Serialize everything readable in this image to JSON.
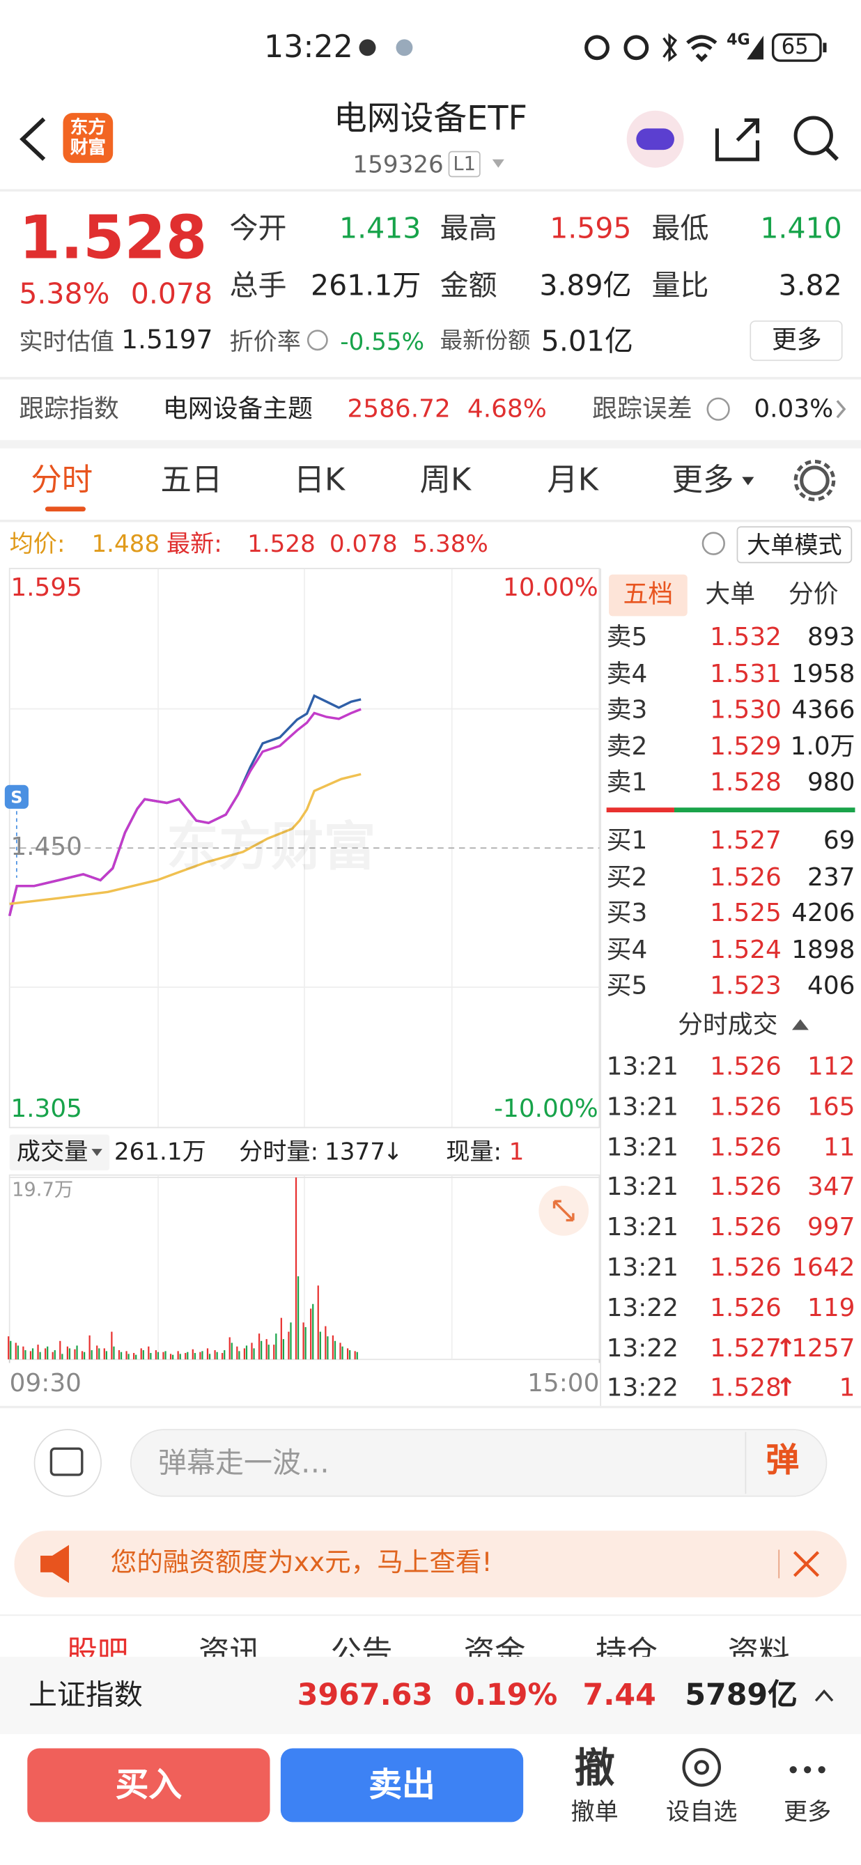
{
  "status_bar": {
    "time": "13:22",
    "network": "4G",
    "battery": "65"
  },
  "header": {
    "logo": "东方财富",
    "title": "电网设备ETF",
    "code": "159326",
    "level": "L1"
  },
  "quote": {
    "price": "1.528",
    "change_pct": "5.38%",
    "change": "0.078",
    "fields": [
      {
        "label": "今开",
        "value": "1.413"
      },
      {
        "label": "最高",
        "value": "1.595"
      },
      {
        "label": "最低",
        "value": "1.410"
      },
      {
        "label": "总手",
        "value": "261.1万"
      },
      {
        "label": "金额",
        "value": "3.89亿"
      },
      {
        "label": "量比",
        "value": "3.82"
      }
    ],
    "estimate_label": "实时估值",
    "estimate": "1.5197",
    "discount_label": "折价率",
    "discount": "-0.55%",
    "shares_label": "最新份额",
    "shares": "5.01亿",
    "more": "更多"
  },
  "tracking": {
    "label": "跟踪指数",
    "index": "电网设备主题",
    "value": "2586.72",
    "pct": "4.68%",
    "error_label": "跟踪误差",
    "error": "0.03%"
  },
  "tabs": [
    "分时",
    "五日",
    "日K",
    "周K",
    "月K",
    "更多"
  ],
  "info_line": {
    "avg_label": "均价:",
    "avg": "1.488",
    "latest_label": "最新:",
    "latest": "1.528",
    "change": "0.078",
    "pct": "5.38%",
    "mode": "大单模式"
  },
  "watermark": "东方财富",
  "intraday_chart": {
    "type": "line",
    "xlim": [
      0,
      240
    ],
    "ylim": [
      1.305,
      1.595
    ],
    "y2lim": [
      -10,
      10
    ],
    "yticks": [
      1.595,
      {
        "value": 1.45,
        "label": "1.450"
      },
      1.305
    ],
    "y2ticks": [
      {
        "value": 10,
        "label": "10.00%"
      },
      {
        "value": -10,
        "label": "-10.00%"
      }
    ],
    "series": [
      {
        "color": "#2f5fa7",
        "x": [
          0,
          3,
          10,
          20,
          30,
          37,
          42,
          47,
          52,
          55,
          64,
          69,
          76,
          81,
          88,
          93,
          98,
          103,
          110,
          117,
          121,
          124,
          129,
          134,
          139,
          143
        ],
        "values": [
          1.4148,
          1.4303,
          1.4303,
          1.4333,
          1.4364,
          1.4333,
          1.4395,
          1.458,
          1.4704,
          1.4753,
          1.4734,
          1.4753,
          1.4642,
          1.463,
          1.4673,
          1.4778,
          1.492,
          1.5043,
          1.5074,
          1.5166,
          1.5197,
          1.529,
          1.5259,
          1.5228,
          1.5259,
          1.5271
        ]
      },
      {
        "color": "#c23cc9",
        "x": [
          0,
          3,
          10,
          20,
          30,
          37,
          42,
          47,
          52,
          55,
          64,
          69,
          76,
          81,
          88,
          93,
          98,
          103,
          110,
          117,
          121,
          124,
          129,
          134,
          139,
          143
        ],
        "values": [
          1.4148,
          1.4303,
          1.4303,
          1.4333,
          1.4364,
          1.4333,
          1.4395,
          1.458,
          1.4704,
          1.4753,
          1.4734,
          1.4753,
          1.4642,
          1.463,
          1.4673,
          1.4778,
          1.49,
          1.5,
          1.503,
          1.511,
          1.515,
          1.52,
          1.518,
          1.517,
          1.52,
          1.522
        ]
      },
      {
        "color": "#f0c050",
        "x": [
          0,
          20,
          40,
          60,
          80,
          95,
          105,
          115,
          118,
          121,
          124,
          130,
          135,
          143
        ],
        "values": [
          1.421,
          1.424,
          1.4272,
          1.4333,
          1.4426,
          1.448,
          1.4549,
          1.46,
          1.4642,
          1.47,
          1.4796,
          1.483,
          1.4858,
          1.4883
        ]
      }
    ]
  },
  "volume_bar": {
    "label": "成交量",
    "total": "261.1万",
    "minute_label": "分时量:",
    "minute": "1377",
    "minute_arrow": "↓",
    "now_label": "现量:",
    "now": "1"
  },
  "volume_chart": {
    "type": "bar",
    "xlim": [
      0,
      240
    ],
    "ylim": [
      0,
      197000
    ],
    "yticks": [
      {
        "value": 197000,
        "label": "19.7万"
      }
    ],
    "xticks": [
      {
        "value": 0,
        "label": "09:30"
      },
      {
        "value": 240,
        "label": "15:00"
      }
    ],
    "x": [
      0,
      3,
      6,
      9,
      12,
      15,
      18,
      21,
      24,
      27,
      30,
      33,
      36,
      39,
      42,
      45,
      48,
      51,
      54,
      57,
      60,
      63,
      66,
      69,
      72,
      75,
      78,
      81,
      84,
      87,
      90,
      93,
      96,
      99,
      102,
      105,
      108,
      111,
      114,
      117,
      120,
      123,
      126,
      129,
      132,
      135,
      138,
      141
    ],
    "series": [
      {
        "color": "#e8312f",
        "values": [
          25000,
          18000,
          14000,
          9000,
          16000,
          12000,
          8000,
          20000,
          14000,
          11000,
          9000,
          26000,
          15000,
          12000,
          30000,
          10000,
          9000,
          7000,
          12000,
          14000,
          10000,
          8000,
          6000,
          9000,
          7000,
          11000,
          8000,
          12000,
          10000,
          7000,
          24000,
          14000,
          12000,
          18000,
          28000,
          22000,
          16000,
          45000,
          30000,
          197000,
          40000,
          55000,
          80000,
          36000,
          26000,
          18000,
          12000,
          9000
        ]
      },
      {
        "color": "#1aa34a",
        "values": [
          20000,
          15000,
          10000,
          12000,
          8000,
          14000,
          10000,
          6000,
          12000,
          15000,
          8000,
          10000,
          12000,
          9000,
          14000,
          8000,
          6000,
          5000,
          10000,
          7000,
          8000,
          9000,
          5000,
          6000,
          8000,
          7000,
          9000,
          6000,
          8000,
          10000,
          18000,
          9000,
          15000,
          12000,
          20000,
          16000,
          28000,
          22000,
          40000,
          90000,
          35000,
          60000,
          30000,
          25000,
          20000,
          14000,
          10000,
          8000
        ]
      }
    ]
  },
  "order_book": {
    "tabs": [
      "五档",
      "大单",
      "分价"
    ],
    "asks": [
      {
        "label": "卖5",
        "price": "1.532",
        "volume": "893"
      },
      {
        "label": "卖4",
        "price": "1.531",
        "volume": "1958"
      },
      {
        "label": "卖3",
        "price": "1.530",
        "volume": "4366"
      },
      {
        "label": "卖2",
        "price": "1.529",
        "volume": "1.0万"
      },
      {
        "label": "卖1",
        "price": "1.528",
        "volume": "980"
      }
    ],
    "bids": [
      {
        "label": "买1",
        "price": "1.527",
        "volume": "69"
      },
      {
        "label": "买2",
        "price": "1.526",
        "volume": "237"
      },
      {
        "label": "买3",
        "price": "1.525",
        "volume": "4206"
      },
      {
        "label": "买4",
        "price": "1.524",
        "volume": "1898"
      },
      {
        "label": "买5",
        "price": "1.523",
        "volume": "406"
      }
    ],
    "trades_title": "分时成交",
    "trades": [
      {
        "time": "13:21",
        "price": "1.526",
        "volume": "112"
      },
      {
        "time": "13:21",
        "price": "1.526",
        "volume": "165"
      },
      {
        "time": "13:21",
        "price": "1.526",
        "volume": "11"
      },
      {
        "time": "13:21",
        "price": "1.526",
        "volume": "347"
      },
      {
        "time": "13:21",
        "price": "1.526",
        "volume": "997"
      },
      {
        "time": "13:21",
        "price": "1.526",
        "volume": "1642"
      },
      {
        "time": "13:22",
        "price": "1.526",
        "volume": "119"
      },
      {
        "time": "13:22",
        "price": "1.527",
        "arrow": "↑",
        "volume": "1257"
      },
      {
        "time": "13:22",
        "price": "1.528",
        "arrow": "↑",
        "volume": "1"
      }
    ]
  },
  "comment": {
    "placeholder": "弹幕走一波…",
    "button": "弹"
  },
  "banner": {
    "text": "您的融资额度为xx元，马上查看!"
  },
  "bottom_tabs": [
    "股吧",
    "资讯",
    "公告",
    "资金",
    "持仓",
    "资料"
  ],
  "index_bar": {
    "name": "上证指数",
    "value": "3967.63",
    "change_pct": "0.19%",
    "change": "7.44",
    "turnover": "5789亿"
  },
  "actions": {
    "buy": "买入",
    "sell": "卖出",
    "cancel_icon": "撤",
    "cancel": "撤单",
    "watch": "设自选",
    "more": "更多"
  }
}
